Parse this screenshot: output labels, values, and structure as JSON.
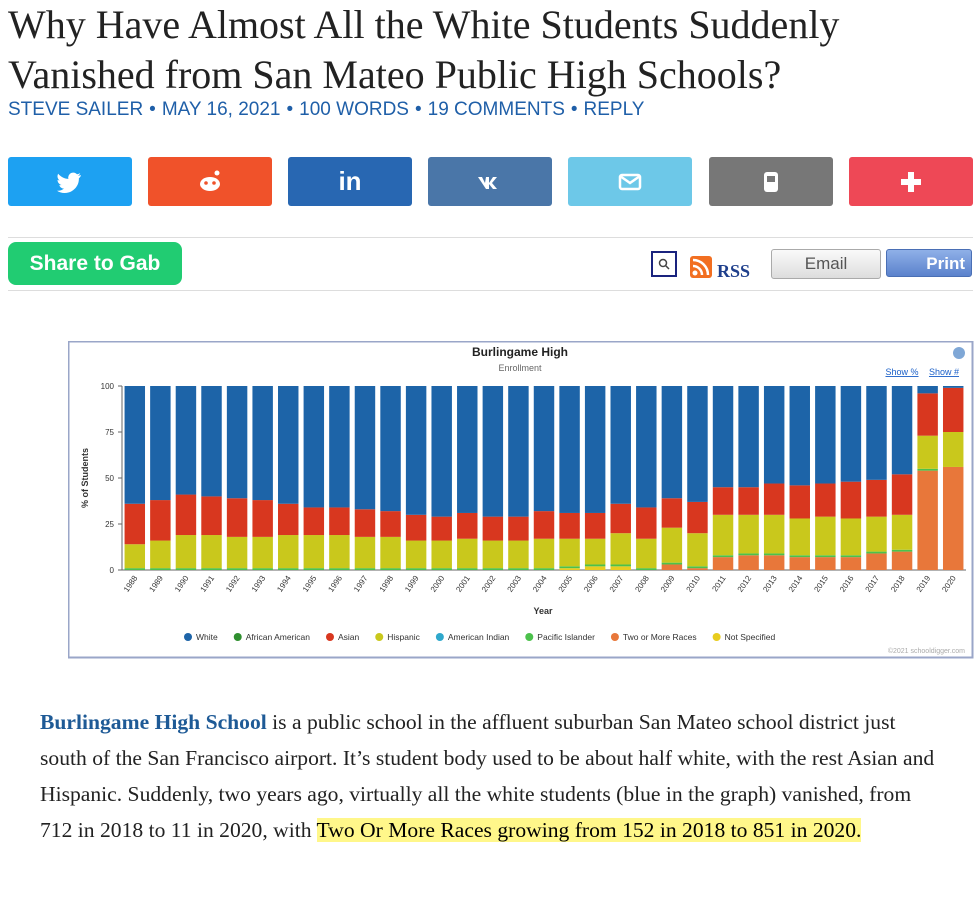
{
  "article": {
    "title": "Why Have Almost All the White Students Suddenly Vanished from San Mateo Public High Schools?",
    "byline": [
      "STEVE SAILER",
      "MAY 16, 2021",
      "100 WORDS",
      "19 COMMENTS",
      "REPLY"
    ],
    "byline_separator": "•",
    "share_linkedin": "in",
    "gab_button": "Share to Gab",
    "rss": "RSS",
    "email_button": "Email",
    "print_button": "Print",
    "text": {
      "link": "Burlingame High School",
      "body": " is a public school in the affluent suburban San Mateo school district just south of the San Francisco airport. It’s student body used to be about half white, with the rest Asian and Hispanic. Suddenly, two years ago, virtually all the white students (blue in the graph) vanished, from 712 in 2018 to 11 in 2020, with ",
      "highlight": "Two Or More Races growing from 152 in 2018 to 851 in 2020."
    }
  },
  "chart_data": {
    "type": "stacked_bar",
    "title": "Burlingame High",
    "subtitle": "Enrollment",
    "links": [
      "Show %",
      "Show #"
    ],
    "y_label": "% of Students",
    "x_label": "Year",
    "credit": "©2021 schooldigger.com",
    "ylim": [
      0,
      100
    ],
    "yticks": [
      0,
      25,
      50,
      75,
      100
    ],
    "categories": [
      "1988",
      "1989",
      "1990",
      "1991",
      "1992",
      "1993",
      "1994",
      "1995",
      "1996",
      "1997",
      "1998",
      "1999",
      "2000",
      "2001",
      "2002",
      "2003",
      "2004",
      "2005",
      "2006",
      "2007",
      "2008",
      "2009",
      "2010",
      "2011",
      "2012",
      "2013",
      "2014",
      "2015",
      "2016",
      "2017",
      "2018",
      "2019",
      "2020"
    ],
    "series": [
      {
        "name": "White",
        "color": "#1d64a8",
        "values": [
          64,
          62,
          59,
          60,
          61,
          62,
          64,
          66,
          66,
          67,
          68,
          70,
          71,
          69,
          71,
          71,
          68,
          69,
          69,
          64,
          66,
          61,
          63,
          55,
          55,
          53,
          54,
          53,
          52,
          51,
          48,
          4,
          1
        ]
      },
      {
        "name": "African American",
        "color": "#2f8f2f",
        "values": [
          0,
          0,
          0,
          0,
          0,
          0,
          0,
          0,
          0,
          0,
          0,
          0,
          0,
          0,
          0,
          0,
          0,
          0,
          0,
          0,
          0,
          0,
          0,
          0,
          0,
          0,
          0,
          0,
          0,
          0,
          0,
          0,
          0
        ]
      },
      {
        "name": "Asian",
        "color": "#d8371f",
        "values": [
          22,
          22,
          22,
          21,
          21,
          20,
          17,
          15,
          15,
          15,
          14,
          14,
          13,
          14,
          13,
          13,
          15,
          14,
          14,
          16,
          17,
          16,
          17,
          15,
          15,
          17,
          18,
          18,
          20,
          20,
          22,
          23,
          24
        ]
      },
      {
        "name": "Hispanic",
        "color": "#c9c81c",
        "values": [
          13,
          15,
          18,
          18,
          17,
          17,
          18,
          18,
          18,
          17,
          17,
          15,
          15,
          16,
          15,
          15,
          16,
          15,
          14,
          17,
          16,
          19,
          18,
          22,
          21,
          21,
          20,
          21,
          20,
          19,
          19,
          18,
          19
        ]
      },
      {
        "name": "American Indian",
        "color": "#2fa8cc",
        "values": [
          0,
          0,
          0,
          0,
          0,
          0,
          0,
          0,
          0,
          0,
          0,
          0,
          0,
          0,
          0,
          0,
          0,
          0,
          0,
          0,
          0,
          0,
          0,
          0,
          0,
          0,
          0,
          0,
          0,
          0,
          0,
          0,
          0
        ]
      },
      {
        "name": "Pacific Islander",
        "color": "#4cc14c",
        "values": [
          1,
          1,
          1,
          1,
          1,
          1,
          1,
          1,
          1,
          1,
          1,
          1,
          1,
          1,
          1,
          1,
          1,
          1,
          1,
          1,
          1,
          1,
          1,
          1,
          1,
          1,
          1,
          1,
          1,
          1,
          1,
          1,
          0
        ]
      },
      {
        "name": "Two or More Races",
        "color": "#e8773a",
        "values": [
          0,
          0,
          0,
          0,
          0,
          0,
          0,
          0,
          0,
          0,
          0,
          0,
          0,
          0,
          0,
          0,
          0,
          0,
          0,
          0,
          0,
          3,
          1,
          7,
          8,
          8,
          7,
          7,
          7,
          9,
          10,
          54,
          56
        ]
      },
      {
        "name": "Not Specified",
        "color": "#e8cc1e",
        "values": [
          0,
          0,
          0,
          0,
          0,
          0,
          0,
          0,
          0,
          0,
          0,
          0,
          0,
          0,
          0,
          0,
          0,
          1,
          2,
          2,
          0,
          0,
          0,
          0,
          0,
          0,
          0,
          0,
          0,
          0,
          0,
          0,
          0
        ]
      }
    ]
  }
}
